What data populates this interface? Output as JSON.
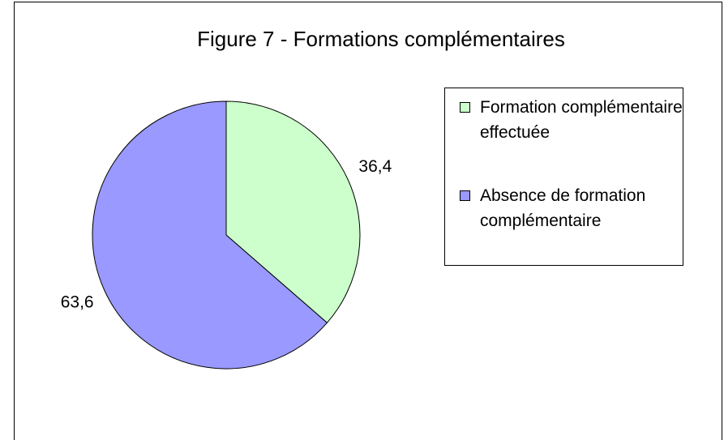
{
  "chart_data": {
    "type": "pie",
    "title": "Figure 7 - Formations complémentaires",
    "categories": [
      "Formation complémentaire effectuée",
      "Absence de formation complémentaire"
    ],
    "values": [
      36.4,
      63.6
    ],
    "value_labels": [
      "36,4",
      "63,6"
    ],
    "colors": [
      "#ccffcc",
      "#9999ff"
    ],
    "legend": "right"
  }
}
